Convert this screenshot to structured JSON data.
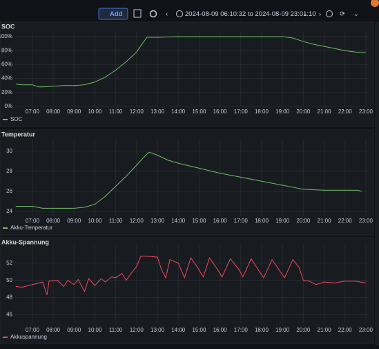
{
  "toolbar": {
    "add": "Add",
    "time_range": "2024-08-09 06:10:32 to 2024-08-09 23:01:10"
  },
  "chart_data": [
    {
      "type": "line",
      "title": "SOC",
      "x": [
        6.2,
        6.5,
        7,
        7.3,
        7.5,
        8,
        8.5,
        9,
        9.5,
        10,
        10.5,
        11,
        11.5,
        12,
        12.3,
        12.5,
        13,
        14,
        15,
        16,
        17,
        18,
        19,
        19.5,
        20,
        20.5,
        21,
        21.5,
        22,
        22.5,
        23
      ],
      "series": [
        {
          "name": "SOC",
          "color": "#73bf69",
          "values": [
            32,
            31,
            31,
            28,
            28,
            29,
            30,
            30,
            31,
            35,
            42,
            52,
            64,
            78,
            91,
            99,
            99,
            100,
            100,
            100,
            100,
            100,
            100,
            98,
            93,
            89,
            86,
            83,
            80,
            78,
            77
          ]
        }
      ],
      "xlim": [
        6.175,
        23.02
      ],
      "xticks": [
        {
          "value": 7,
          "label": "07:00"
        },
        {
          "value": 8,
          "label": "08:00"
        },
        {
          "value": 9,
          "label": "09:00"
        },
        {
          "value": 10,
          "label": "10:00"
        },
        {
          "value": 11,
          "label": "11:00"
        },
        {
          "value": 12,
          "label": "12:00"
        },
        {
          "value": 13,
          "label": "13:00"
        },
        {
          "value": 14,
          "label": "14:00"
        },
        {
          "value": 15,
          "label": "15:00"
        },
        {
          "value": 16,
          "label": "16:00"
        },
        {
          "value": 17,
          "label": "17:00"
        },
        {
          "value": 18,
          "label": "18:00"
        },
        {
          "value": 19,
          "label": "19:00"
        },
        {
          "value": 20,
          "label": "20:00"
        },
        {
          "value": 21,
          "label": "21:00"
        },
        {
          "value": 22,
          "label": "22:00"
        },
        {
          "value": 23,
          "label": "23:00"
        }
      ],
      "ylim": [
        0,
        100
      ],
      "yticks": [
        {
          "value": 0,
          "label": "0%"
        },
        {
          "value": 20,
          "label": "20%"
        },
        {
          "value": 40,
          "label": "40%"
        },
        {
          "value": 60,
          "label": "60%"
        },
        {
          "value": 80,
          "label": "80%"
        },
        {
          "value": 100,
          "label": "100%"
        }
      ],
      "grid": true
    },
    {
      "type": "line",
      "title": "Temperatur",
      "x": [
        6.2,
        7,
        7.5,
        8,
        9,
        9.5,
        10,
        10.5,
        11,
        11.5,
        12,
        12.3,
        12.6,
        13,
        13.5,
        14,
        15,
        16,
        17,
        18,
        19,
        19.5,
        20,
        21,
        22,
        22.6,
        22.8
      ],
      "series": [
        {
          "name": "Akku-Temperatur",
          "color": "#73bf69",
          "values": [
            24.5,
            24.5,
            24.3,
            24.3,
            24.3,
            24.4,
            24.7,
            25.5,
            26.5,
            27.5,
            28.6,
            29.3,
            29.9,
            29.6,
            29.1,
            28.8,
            28.3,
            27.8,
            27.4,
            27,
            26.6,
            26.4,
            26.2,
            26.1,
            26.1,
            26.1,
            26.0
          ]
        }
      ],
      "xlim": [
        6.175,
        23.02
      ],
      "xticks": [
        {
          "value": 7,
          "label": "07:00"
        },
        {
          "value": 8,
          "label": "08:00"
        },
        {
          "value": 9,
          "label": "09:00"
        },
        {
          "value": 10,
          "label": "10:00"
        },
        {
          "value": 11,
          "label": "11:00"
        },
        {
          "value": 12,
          "label": "12:00"
        },
        {
          "value": 13,
          "label": "13:00"
        },
        {
          "value": 14,
          "label": "14:00"
        },
        {
          "value": 15,
          "label": "15:00"
        },
        {
          "value": 16,
          "label": "16:00"
        },
        {
          "value": 17,
          "label": "17:00"
        },
        {
          "value": 18,
          "label": "18:00"
        },
        {
          "value": 19,
          "label": "19:00"
        },
        {
          "value": 20,
          "label": "20:00"
        },
        {
          "value": 21,
          "label": "21:00"
        },
        {
          "value": 22,
          "label": "22:00"
        },
        {
          "value": 23,
          "label": "23:00"
        }
      ],
      "ylim": [
        23.5,
        30.6
      ],
      "yticks": [
        24,
        26,
        28,
        30
      ],
      "grid": true
    },
    {
      "type": "line",
      "title": "Akku-Spannung",
      "x": [
        6.2,
        6.5,
        7,
        7.5,
        7.7,
        7.8,
        8.2,
        8.5,
        8.7,
        9,
        9.2,
        9.5,
        9.7,
        10,
        10.3,
        10.5,
        10.8,
        11,
        11.3,
        11.5,
        11.8,
        12,
        12.2,
        12.5,
        13,
        13.2,
        13.4,
        13.6,
        14,
        14.3,
        14.6,
        14.9,
        15.2,
        15.5,
        15.9,
        16.1,
        16.5,
        16.9,
        17.1,
        17.5,
        17.9,
        18.1,
        18.5,
        18.9,
        19.1,
        19.5,
        19.8,
        20,
        20.3,
        20.6,
        21,
        21.5,
        22,
        22.5,
        23
      ],
      "series": [
        {
          "name": "Akkuspannung",
          "color": "#f2495c",
          "values": [
            49.3,
            49.2,
            49.5,
            49.8,
            48.3,
            49.9,
            50,
            49.3,
            50,
            49.5,
            50.1,
            48.7,
            50.2,
            49.4,
            50.2,
            49.8,
            50.4,
            50.3,
            50.8,
            50,
            51,
            51.6,
            52.8,
            52.8,
            52.7,
            51.2,
            50.3,
            52.4,
            52,
            50.3,
            52.6,
            51.6,
            50.4,
            52.6,
            51.2,
            50.4,
            52.5,
            51.3,
            50.4,
            52.5,
            51,
            50.3,
            52.4,
            51,
            50.3,
            52.4,
            51.5,
            50,
            49.9,
            49.5,
            49.8,
            49.7,
            49.9,
            49.9,
            49.7
          ]
        }
      ],
      "xlim": [
        6.175,
        23.02
      ],
      "xticks": [
        {
          "value": 7,
          "label": "07:00"
        },
        {
          "value": 8,
          "label": "08:00"
        },
        {
          "value": 9,
          "label": "09:00"
        },
        {
          "value": 10,
          "label": "10:00"
        },
        {
          "value": 11,
          "label": "11:00"
        },
        {
          "value": 12,
          "label": "12:00"
        },
        {
          "value": 13,
          "label": "13:00"
        },
        {
          "value": 14,
          "label": "14:00"
        },
        {
          "value": 15,
          "label": "15:00"
        },
        {
          "value": 16,
          "label": "16:00"
        },
        {
          "value": 17,
          "label": "17:00"
        },
        {
          "value": 18,
          "label": "18:00"
        },
        {
          "value": 19,
          "label": "19:00"
        },
        {
          "value": 20,
          "label": "20:00"
        },
        {
          "value": 21,
          "label": "21:00"
        },
        {
          "value": 22,
          "label": "22:00"
        },
        {
          "value": 23,
          "label": "23:00"
        }
      ],
      "ylim": [
        45,
        53.5
      ],
      "yticks": [
        46,
        48,
        50,
        52
      ],
      "grid": true
    }
  ]
}
